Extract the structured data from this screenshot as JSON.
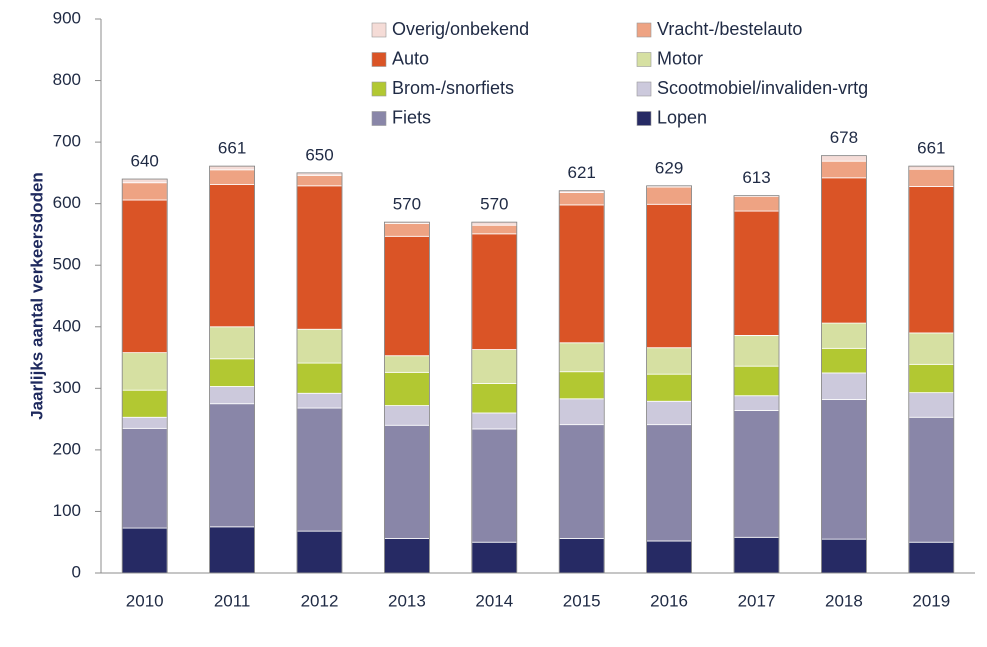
{
  "chart_data": {
    "type": "bar",
    "stacked": true,
    "title": "",
    "xlabel": "",
    "ylabel": "Jaarlijks aantal verkeersdoden",
    "ylim": [
      0,
      900
    ],
    "yticks": [
      0,
      100,
      200,
      300,
      400,
      500,
      600,
      700,
      800,
      900
    ],
    "grid": false,
    "legend_position": "top-right",
    "categories": [
      "2010",
      "2011",
      "2012",
      "2013",
      "2014",
      "2015",
      "2016",
      "2017",
      "2018",
      "2019"
    ],
    "totals": [
      640,
      661,
      650,
      570,
      570,
      621,
      629,
      613,
      678,
      661
    ],
    "series": [
      {
        "name": "Lopen",
        "color": "#262a64",
        "values": [
          73,
          75,
          68,
          56,
          50,
          56,
          52,
          58,
          55,
          50
        ]
      },
      {
        "name": "Fiets",
        "color": "#8986a8",
        "values": [
          162,
          200,
          200,
          184,
          184,
          185,
          189,
          206,
          227,
          203
        ]
      },
      {
        "name": "Scootmobiel/invaliden-vrtg",
        "color": "#ccc9dc",
        "values": [
          18,
          28,
          24,
          32,
          26,
          42,
          38,
          24,
          43,
          40
        ]
      },
      {
        "name": "Brom-/snorfiets",
        "color": "#b2c832",
        "values": [
          44,
          45,
          49,
          54,
          48,
          44,
          44,
          48,
          40,
          46
        ]
      },
      {
        "name": "Motor",
        "color": "#d6e0a2",
        "values": [
          61,
          52,
          55,
          27,
          55,
          47,
          43,
          50,
          41,
          51
        ]
      },
      {
        "name": "Auto",
        "color": "#da5426",
        "values": [
          248,
          231,
          233,
          194,
          188,
          224,
          233,
          202,
          236,
          238
        ]
      },
      {
        "name": "Vracht-/bestelauto",
        "color": "#eea383",
        "values": [
          28,
          24,
          17,
          21,
          14,
          20,
          28,
          24,
          27,
          28
        ]
      },
      {
        "name": "Overig/onbekend",
        "color": "#f5dcd7",
        "values": [
          6,
          6,
          4,
          2,
          5,
          3,
          2,
          1,
          9,
          5
        ]
      }
    ],
    "legend_layout": [
      [
        "Overig/onbekend",
        "Vracht-/bestelauto"
      ],
      [
        "Auto",
        "Motor"
      ],
      [
        "Brom-/snorfiets",
        "Scootmobiel/invaliden-vrtg"
      ],
      [
        "Fiets",
        "Lopen"
      ]
    ]
  }
}
